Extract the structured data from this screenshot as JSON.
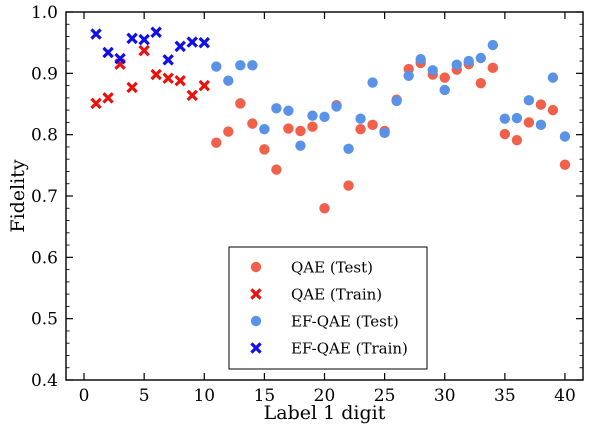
{
  "chart_data": {
    "type": "scatter",
    "xlabel": "Label 1 digit",
    "ylabel": "Fidelity",
    "xlim": [
      -1.5,
      41.5
    ],
    "ylim": [
      0.4,
      1.0
    ],
    "xticks": [
      0,
      5,
      10,
      15,
      20,
      25,
      30,
      35,
      40
    ],
    "yticks": [
      0.4,
      0.5,
      0.6,
      0.7,
      0.8,
      0.9,
      1.0
    ],
    "xtick_labels": [
      "0",
      "5",
      "10",
      "15",
      "20",
      "25",
      "30",
      "35",
      "40"
    ],
    "ytick_labels": [
      "0.4",
      "0.5",
      "0.6",
      "0.7",
      "0.8",
      "0.9",
      "1.0"
    ],
    "legend_position": "lower-center",
    "grid": false,
    "series": [
      {
        "name": "QAE (Test)",
        "marker": "circle",
        "color": "#f0604a",
        "x": [
          11,
          12,
          13,
          14,
          15,
          16,
          17,
          18,
          19,
          20,
          21,
          22,
          23,
          24,
          25,
          26,
          27,
          28,
          29,
          30,
          31,
          32,
          33,
          34,
          35,
          36,
          37,
          38,
          39,
          40
        ],
        "y": [
          0.787,
          0.805,
          0.851,
          0.818,
          0.776,
          0.743,
          0.81,
          0.806,
          0.813,
          0.68,
          0.848,
          0.717,
          0.809,
          0.816,
          0.806,
          0.857,
          0.907,
          0.917,
          0.898,
          0.893,
          0.906,
          0.915,
          0.884,
          0.909,
          0.801,
          0.791,
          0.82,
          0.849,
          0.84,
          0.751
        ]
      },
      {
        "name": "QAE (Train)",
        "marker": "x",
        "color": "#e8130e",
        "x": [
          1,
          2,
          3,
          4,
          5,
          6,
          7,
          8,
          9,
          10
        ],
        "y": [
          0.851,
          0.86,
          0.915,
          0.877,
          0.937,
          0.898,
          0.892,
          0.888,
          0.864,
          0.88
        ]
      },
      {
        "name": "EF-QAE (Test)",
        "marker": "circle",
        "color": "#5a92e8",
        "x": [
          11,
          12,
          13,
          14,
          15,
          16,
          17,
          18,
          19,
          20,
          21,
          22,
          23,
          24,
          25,
          26,
          27,
          28,
          29,
          30,
          31,
          32,
          33,
          34,
          35,
          36,
          37,
          38,
          39,
          40
        ],
        "y": [
          0.911,
          0.888,
          0.913,
          0.913,
          0.809,
          0.843,
          0.839,
          0.782,
          0.831,
          0.829,
          0.846,
          0.777,
          0.826,
          0.885,
          0.803,
          0.855,
          0.896,
          0.923,
          0.905,
          0.873,
          0.914,
          0.92,
          0.925,
          0.946,
          0.826,
          0.827,
          0.856,
          0.816,
          0.893,
          0.797
        ]
      },
      {
        "name": "EF-QAE (Train)",
        "marker": "x",
        "color": "#1010e6",
        "x": [
          1,
          2,
          3,
          4,
          5,
          6,
          7,
          8,
          9,
          10
        ],
        "y": [
          0.964,
          0.934,
          0.924,
          0.957,
          0.955,
          0.967,
          0.922,
          0.944,
          0.951,
          0.95
        ]
      }
    ]
  }
}
